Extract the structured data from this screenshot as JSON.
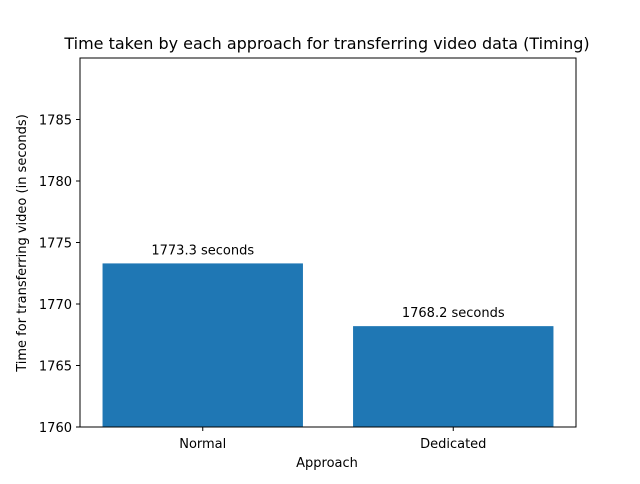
{
  "chart_data": {
    "type": "bar",
    "title": "Time taken by each approach for transferring video data (Timing)",
    "xlabel": "Approach",
    "ylabel": "Time for transferring video (in seconds)",
    "categories": [
      "Normal",
      "Dedicated"
    ],
    "values": [
      1773.3,
      1768.2
    ],
    "data_labels": [
      "1773.3 seconds",
      "1768.2 seconds"
    ],
    "ylim": [
      1760,
      1790
    ],
    "yticks": [
      1760,
      1765,
      1770,
      1775,
      1780,
      1785
    ],
    "bar_color": "#1f77b4",
    "grid": false,
    "legend": "none"
  }
}
